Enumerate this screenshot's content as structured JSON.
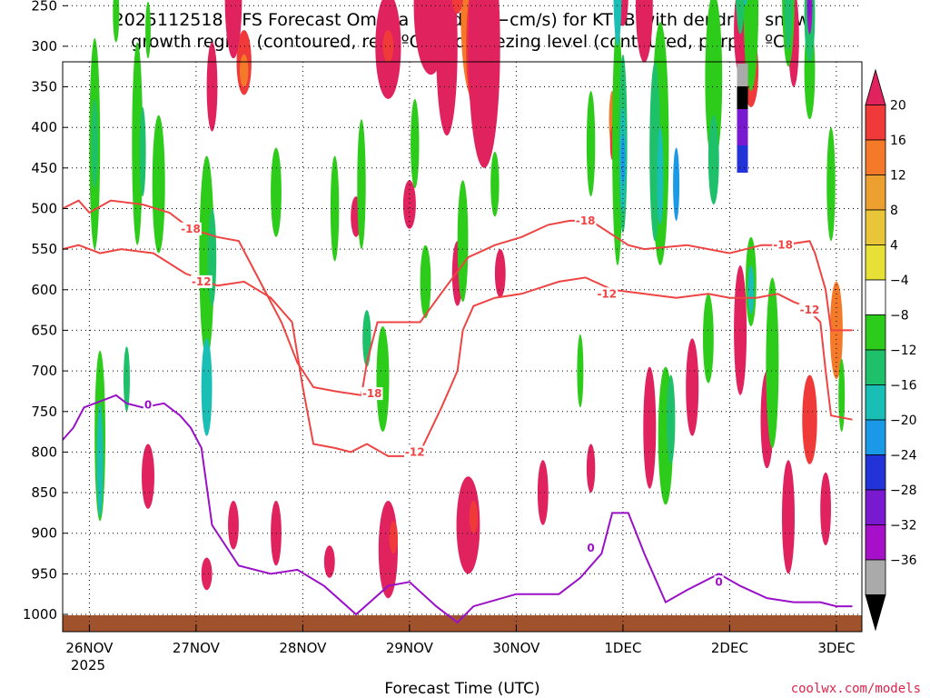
{
  "chart_data": {
    "type": "heatmap",
    "title_lines": [
      "2025112518 GFS Forecast Omega (shaded, −cm/s) for KTEB with dendritic snow",
      "growth region (contoured, red, ºC) and freezing level (contoured, purple, ºC)"
    ],
    "xlabel": "Forecast Time (UTC)",
    "x_ticks": [
      "26NOV",
      "27NOV",
      "28NOV",
      "29NOV",
      "30NOV",
      "1DEC",
      "2DEC",
      "3DEC"
    ],
    "x_year": "2025",
    "x_range_days": [
      25.75,
      33.15
    ],
    "y_ticks": [
      250,
      300,
      350,
      400,
      450,
      500,
      550,
      600,
      650,
      700,
      750,
      800,
      850,
      900,
      950,
      1000
    ],
    "y_axis": "pressure (hPa), inverted",
    "colorbar": {
      "labels": [
        20,
        16,
        12,
        8,
        4,
        -4,
        -8,
        -12,
        -16,
        -20,
        -24,
        -28,
        -32,
        -36
      ],
      "bins": [
        {
          "color": "#e0225e"
        },
        {
          "color": "#f03a3a"
        },
        {
          "color": "#f47a2a"
        },
        {
          "color": "#eba030"
        },
        {
          "color": "#e9c53a"
        },
        {
          "color": "#e7e036"
        },
        {
          "color": "#ffffff"
        },
        {
          "color": "#2ecc1a"
        },
        {
          "color": "#1ec06a"
        },
        {
          "color": "#19bfb4"
        },
        {
          "color": "#1a9ae6"
        },
        {
          "color": "#2234d8"
        },
        {
          "color": "#7a1ad0"
        },
        {
          "color": "#a710c9"
        },
        {
          "color": "#aaaaaa"
        },
        {
          "color": "#000000"
        }
      ]
    },
    "contours": {
      "dgz_minus18": {
        "label": "-18",
        "color": "#ee4444",
        "points": [
          [
            25.75,
            500
          ],
          [
            25.9,
            490
          ],
          [
            26.0,
            505
          ],
          [
            26.2,
            490
          ],
          [
            26.5,
            495
          ],
          [
            26.75,
            505
          ],
          [
            26.95,
            525
          ],
          [
            27.2,
            535
          ],
          [
            27.4,
            540
          ],
          [
            27.6,
            590
          ],
          [
            27.8,
            640
          ],
          [
            27.95,
            690
          ],
          [
            28.1,
            720
          ],
          [
            28.3,
            725
          ],
          [
            28.55,
            730
          ],
          [
            28.6,
            690
          ],
          [
            28.7,
            640
          ],
          [
            28.9,
            640
          ],
          [
            29.1,
            640
          ],
          [
            29.35,
            595
          ],
          [
            29.55,
            560
          ],
          [
            29.8,
            545
          ],
          [
            30.05,
            535
          ],
          [
            30.3,
            520
          ],
          [
            30.5,
            515
          ],
          [
            30.7,
            515
          ],
          [
            31.05,
            545
          ],
          [
            31.2,
            550
          ],
          [
            31.6,
            545
          ],
          [
            31.8,
            550
          ],
          [
            32.0,
            555
          ],
          [
            32.3,
            545
          ],
          [
            32.5,
            545
          ],
          [
            32.75,
            540
          ],
          [
            32.8,
            555
          ],
          [
            32.9,
            600
          ],
          [
            32.95,
            650
          ],
          [
            33.15,
            650
          ]
        ]
      },
      "dgz_minus12": {
        "label": "-12",
        "color": "#ee4444",
        "points": [
          [
            25.75,
            550
          ],
          [
            25.9,
            545
          ],
          [
            26.1,
            555
          ],
          [
            26.3,
            550
          ],
          [
            26.6,
            555
          ],
          [
            26.9,
            580
          ],
          [
            27.2,
            595
          ],
          [
            27.45,
            590
          ],
          [
            27.7,
            610
          ],
          [
            27.9,
            640
          ],
          [
            28.0,
            720
          ],
          [
            28.1,
            790
          ],
          [
            28.3,
            795
          ],
          [
            28.45,
            800
          ],
          [
            28.6,
            790
          ],
          [
            28.8,
            805
          ],
          [
            28.95,
            805
          ],
          [
            29.1,
            800
          ],
          [
            29.3,
            745
          ],
          [
            29.45,
            700
          ],
          [
            29.5,
            650
          ],
          [
            29.6,
            620
          ],
          [
            29.8,
            610
          ],
          [
            30.05,
            605
          ],
          [
            30.4,
            590
          ],
          [
            30.65,
            585
          ],
          [
            30.9,
            600
          ],
          [
            31.2,
            605
          ],
          [
            31.5,
            610
          ],
          [
            31.8,
            605
          ],
          [
            32.0,
            610
          ],
          [
            32.25,
            610
          ],
          [
            32.45,
            605
          ],
          [
            32.6,
            615
          ],
          [
            32.7,
            620
          ],
          [
            32.85,
            640
          ],
          [
            32.9,
            700
          ],
          [
            32.95,
            755
          ],
          [
            33.15,
            760
          ]
        ]
      },
      "freezing_0C": {
        "label": "0",
        "color": "#9a10c8",
        "points": [
          [
            25.75,
            785
          ],
          [
            25.85,
            770
          ],
          [
            25.95,
            745
          ],
          [
            26.05,
            740
          ],
          [
            26.15,
            735
          ],
          [
            26.25,
            730
          ],
          [
            26.35,
            740
          ],
          [
            26.5,
            745
          ],
          [
            26.7,
            740
          ],
          [
            26.85,
            755
          ],
          [
            26.95,
            770
          ],
          [
            27.05,
            795
          ],
          [
            27.15,
            890
          ],
          [
            27.4,
            940
          ],
          [
            27.7,
            950
          ],
          [
            27.95,
            945
          ],
          [
            28.2,
            965
          ],
          [
            28.5,
            1000
          ],
          [
            28.8,
            965
          ],
          [
            29.0,
            960
          ],
          [
            29.25,
            990
          ],
          [
            29.45,
            1010
          ],
          [
            29.6,
            990
          ],
          [
            30.0,
            975
          ],
          [
            30.4,
            975
          ],
          [
            30.6,
            955
          ],
          [
            30.8,
            925
          ],
          [
            30.9,
            875
          ],
          [
            31.05,
            875
          ],
          [
            31.2,
            925
          ],
          [
            31.4,
            985
          ],
          [
            31.6,
            970
          ],
          [
            31.9,
            950
          ],
          [
            32.1,
            965
          ],
          [
            32.35,
            980
          ],
          [
            32.6,
            985
          ],
          [
            32.85,
            985
          ],
          [
            33.0,
            990
          ],
          [
            33.15,
            990
          ]
        ]
      }
    }
  },
  "footer": {
    "credit": "coolwx.com/models"
  }
}
